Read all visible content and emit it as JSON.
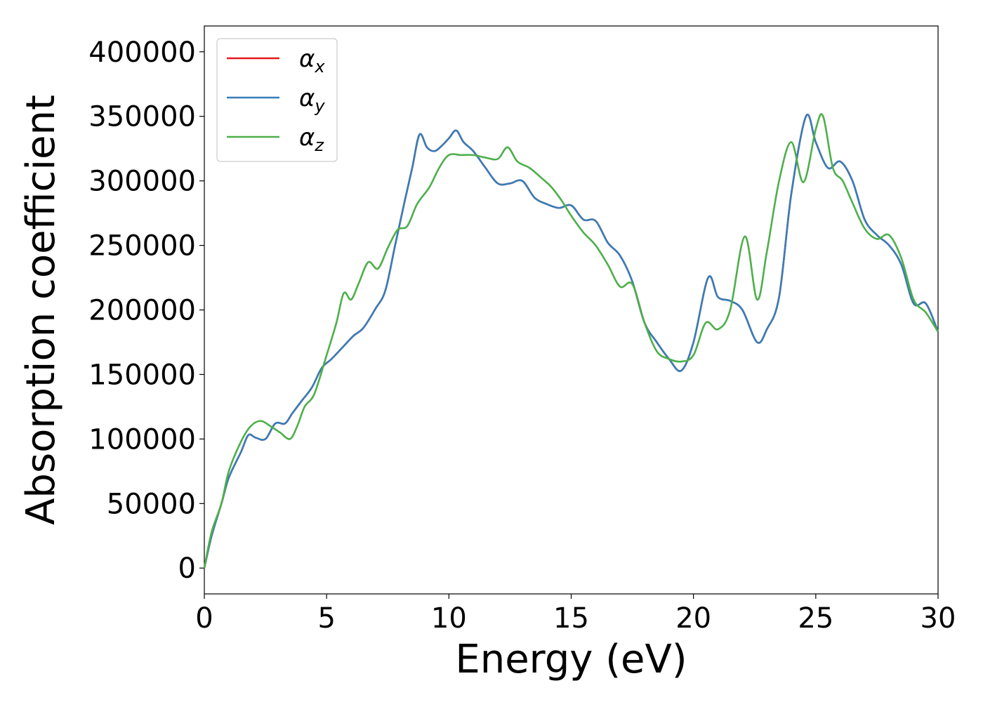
{
  "chart_data": {
    "type": "line",
    "xlabel": "Energy (eV)",
    "ylabel": "Absorption coefficient",
    "xlim": [
      0,
      30
    ],
    "ylim": [
      -20000,
      420000
    ],
    "x_ticks": [
      0,
      5,
      10,
      15,
      20,
      25,
      30
    ],
    "y_ticks": [
      0,
      50000,
      100000,
      150000,
      200000,
      250000,
      300000,
      350000,
      400000
    ],
    "grid": false,
    "legend_position": "top-left",
    "series": [
      {
        "name": "α",
        "subscript": "x",
        "color": "#e41a1c",
        "x": [
          0,
          0.3,
          0.7,
          1.0,
          1.5,
          1.8,
          2.1,
          2.5,
          2.9,
          3.3,
          3.6,
          4.0,
          4.4,
          4.8,
          5.2,
          5.7,
          6.1,
          6.5,
          7.0,
          7.4,
          7.8,
          8.2,
          8.5,
          8.8,
          9.1,
          9.4,
          9.7,
          10.0,
          10.3,
          10.6,
          11.0,
          11.5,
          12.0,
          12.5,
          13.0,
          13.5,
          14.0,
          14.5,
          15.0,
          15.5,
          16.0,
          16.5,
          17.0,
          17.5,
          18.0,
          18.5,
          19.0,
          19.5,
          20.0,
          20.6,
          21.0,
          21.5,
          22.0,
          22.6,
          23.0,
          23.5,
          24.0,
          24.6,
          25.0,
          25.5,
          26.0,
          26.5,
          27.0,
          27.5,
          28.0,
          28.5,
          29.0,
          29.5,
          30.0
        ],
        "values": [
          0,
          25000,
          50000,
          70000,
          90000,
          103000,
          101000,
          100000,
          112000,
          112000,
          120000,
          130000,
          140000,
          155000,
          162000,
          172000,
          180000,
          186000,
          201000,
          215000,
          250000,
          285000,
          310000,
          336000,
          326000,
          323000,
          327000,
          333000,
          339000,
          330000,
          323000,
          310000,
          298000,
          298000,
          300000,
          287000,
          282000,
          279000,
          281000,
          270000,
          269000,
          252000,
          242000,
          222000,
          190000,
          175000,
          162000,
          153000,
          175000,
          225000,
          210000,
          207000,
          200000,
          175000,
          185000,
          210000,
          290000,
          350000,
          330000,
          310000,
          315000,
          300000,
          270000,
          258000,
          250000,
          235000,
          205000,
          205000,
          183000
        ]
      },
      {
        "name": "α",
        "subscript": "y",
        "color": "#377eb8",
        "x": [
          0,
          0.3,
          0.7,
          1.0,
          1.5,
          1.8,
          2.1,
          2.5,
          2.9,
          3.3,
          3.6,
          4.0,
          4.4,
          4.8,
          5.2,
          5.7,
          6.1,
          6.5,
          7.0,
          7.4,
          7.8,
          8.2,
          8.5,
          8.8,
          9.1,
          9.4,
          9.7,
          10.0,
          10.3,
          10.6,
          11.0,
          11.5,
          12.0,
          12.5,
          13.0,
          13.5,
          14.0,
          14.5,
          15.0,
          15.5,
          16.0,
          16.5,
          17.0,
          17.5,
          18.0,
          18.5,
          19.0,
          19.5,
          20.0,
          20.6,
          21.0,
          21.5,
          22.0,
          22.6,
          23.0,
          23.5,
          24.0,
          24.6,
          25.0,
          25.5,
          26.0,
          26.5,
          27.0,
          27.5,
          28.0,
          28.5,
          29.0,
          29.5,
          30.0
        ],
        "values": [
          0,
          25000,
          50000,
          70000,
          90000,
          103000,
          101000,
          100000,
          112000,
          112000,
          120000,
          130000,
          140000,
          155000,
          162000,
          172000,
          180000,
          186000,
          201000,
          215000,
          250000,
          285000,
          310000,
          336000,
          326000,
          323000,
          327000,
          333000,
          339000,
          330000,
          323000,
          310000,
          298000,
          298000,
          300000,
          287000,
          282000,
          279000,
          281000,
          270000,
          269000,
          252000,
          242000,
          222000,
          190000,
          175000,
          162000,
          153000,
          175000,
          225000,
          210000,
          207000,
          200000,
          175000,
          185000,
          210000,
          290000,
          350000,
          330000,
          310000,
          315000,
          300000,
          270000,
          258000,
          250000,
          235000,
          205000,
          205000,
          183000
        ]
      },
      {
        "name": "α",
        "subscript": "z",
        "color": "#4daf4a",
        "x": [
          0,
          0.3,
          0.7,
          1.0,
          1.5,
          1.9,
          2.3,
          2.7,
          3.1,
          3.5,
          3.8,
          4.1,
          4.5,
          5.0,
          5.4,
          5.7,
          6.0,
          6.3,
          6.7,
          7.1,
          7.5,
          7.9,
          8.3,
          8.7,
          9.2,
          9.6,
          10.0,
          10.5,
          11.0,
          11.5,
          12.0,
          12.4,
          12.8,
          13.3,
          13.8,
          14.2,
          14.6,
          15.0,
          15.5,
          16.0,
          16.5,
          17.0,
          17.5,
          18.0,
          18.5,
          19.0,
          19.5,
          20.0,
          20.5,
          21.0,
          21.5,
          22.1,
          22.6,
          23.0,
          23.5,
          24.0,
          24.5,
          25.0,
          25.3,
          25.7,
          26.1,
          26.5,
          27.0,
          27.5,
          28.0,
          28.5,
          29.0,
          29.5,
          30.0
        ],
        "values": [
          0,
          28000,
          50000,
          75000,
          98000,
          110000,
          114000,
          110000,
          105000,
          100000,
          110000,
          125000,
          135000,
          165000,
          190000,
          213000,
          208000,
          220000,
          237000,
          232000,
          248000,
          262000,
          265000,
          282000,
          295000,
          310000,
          320000,
          320000,
          320000,
          318000,
          317000,
          326000,
          315000,
          310000,
          302000,
          295000,
          285000,
          273000,
          260000,
          250000,
          235000,
          218000,
          220000,
          190000,
          168000,
          162000,
          160000,
          165000,
          190000,
          185000,
          200000,
          257000,
          208000,
          245000,
          300000,
          330000,
          299000,
          340000,
          350000,
          310000,
          300000,
          283000,
          263000,
          255000,
          258000,
          240000,
          208000,
          198000,
          183000
        ]
      }
    ]
  }
}
